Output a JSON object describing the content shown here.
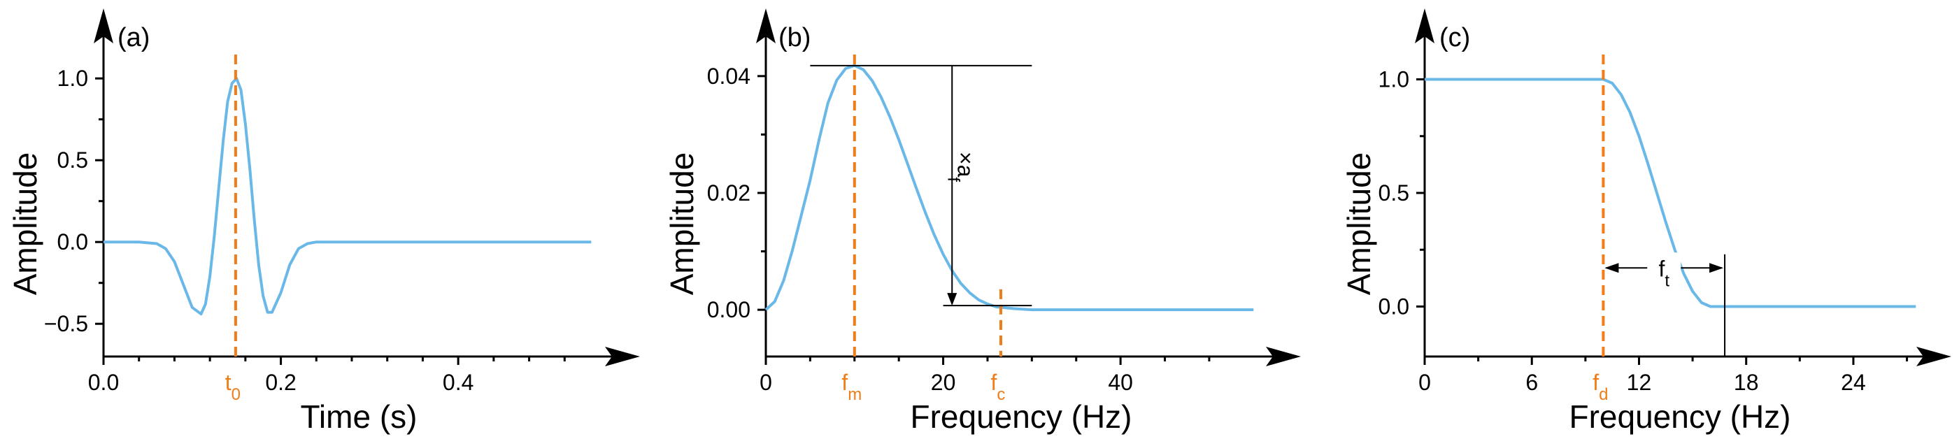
{
  "colors": {
    "curve": "#6ab8e8",
    "marker": "#ef7d1a",
    "axis": "#000000"
  },
  "chart_data": [
    {
      "type": "line",
      "panel_label": "(a)",
      "xlabel": "Time (s)",
      "ylabel": "Amplitude",
      "xlim": [
        0.0,
        0.56
      ],
      "ylim": [
        -0.7,
        1.3
      ],
      "xticks": [
        {
          "value": 0.0,
          "label": "0.0"
        },
        {
          "value": 0.2,
          "label": "0.2"
        },
        {
          "value": 0.4,
          "label": "0.4"
        }
      ],
      "xminor": [
        0.04,
        0.08,
        0.12,
        0.16,
        0.24,
        0.28,
        0.32,
        0.36,
        0.44,
        0.48,
        0.52
      ],
      "yticks": [
        {
          "value": -0.5,
          "label": "−0.5"
        },
        {
          "value": 0.0,
          "label": "0.0"
        },
        {
          "value": 0.5,
          "label": "0.5"
        },
        {
          "value": 1.0,
          "label": "1.0"
        }
      ],
      "yminor": [
        -0.25,
        0.25,
        0.75
      ],
      "series": [
        {
          "x": [
            0.0,
            0.04,
            0.06,
            0.07,
            0.08,
            0.09,
            0.1,
            0.11,
            0.115,
            0.12,
            0.125,
            0.13,
            0.135,
            0.14,
            0.145,
            0.15,
            0.155,
            0.16,
            0.165,
            0.17,
            0.175,
            0.18,
            0.185,
            0.19,
            0.2,
            0.21,
            0.22,
            0.23,
            0.24,
            0.26,
            0.3,
            0.4,
            0.5,
            0.55
          ],
          "y": [
            0.0,
            0.0,
            -0.01,
            -0.04,
            -0.12,
            -0.26,
            -0.4,
            -0.44,
            -0.38,
            -0.21,
            0.04,
            0.33,
            0.62,
            0.86,
            0.97,
            1.0,
            0.93,
            0.72,
            0.45,
            0.14,
            -0.14,
            -0.33,
            -0.43,
            -0.43,
            -0.31,
            -0.14,
            -0.04,
            -0.01,
            0.0,
            0.0,
            0.0,
            0.0,
            0.0,
            0.0
          ]
        }
      ],
      "markers": [
        {
          "x": 0.149,
          "label": "t",
          "sub": "0"
        }
      ]
    },
    {
      "type": "line",
      "panel_label": "(b)",
      "xlabel": "Frequency (Hz)",
      "ylabel": "Amplitude",
      "xlim": [
        0,
        56
      ],
      "ylim": [
        -0.008,
        0.048
      ],
      "xticks": [
        {
          "value": 0,
          "label": "0"
        },
        {
          "value": 20,
          "label": "20"
        },
        {
          "value": 40,
          "label": "40"
        }
      ],
      "xminor": [
        5,
        10,
        15,
        25,
        30,
        35,
        45,
        50
      ],
      "yticks": [
        {
          "value": 0.0,
          "label": "0.00"
        },
        {
          "value": 0.02,
          "label": "0.02"
        },
        {
          "value": 0.04,
          "label": "0.04"
        }
      ],
      "yminor": [
        0.01,
        0.03
      ],
      "series": [
        {
          "x": [
            0,
            1,
            2,
            3,
            4,
            5,
            6,
            7,
            8,
            9,
            10,
            11,
            12,
            13,
            14,
            15,
            16,
            17,
            18,
            19,
            20,
            21,
            22,
            23,
            24,
            25,
            26,
            28,
            30,
            35,
            40,
            45,
            50,
            55
          ],
          "y": [
            0.0,
            0.0014,
            0.005,
            0.0102,
            0.0162,
            0.0222,
            0.0291,
            0.0354,
            0.0393,
            0.0413,
            0.0418,
            0.0411,
            0.0392,
            0.0364,
            0.033,
            0.0291,
            0.0249,
            0.0207,
            0.0166,
            0.0128,
            0.0095,
            0.0067,
            0.0045,
            0.0029,
            0.0017,
            0.001,
            0.0005,
            0.0002,
            0.0,
            0.0,
            0.0,
            0.0,
            0.0,
            0.0
          ]
        }
      ],
      "markers": [
        {
          "x": 10,
          "label": "f",
          "sub": "m"
        },
        {
          "x": 26.5,
          "label": "f",
          "sub": "c"
        }
      ],
      "annotations": [
        {
          "label": "×a",
          "sub": "f"
        }
      ]
    },
    {
      "type": "line",
      "panel_label": "(c)",
      "xlabel": "Frequency (Hz)",
      "ylabel": "Amplitude",
      "xlim": [
        0,
        27.8
      ],
      "ylim": [
        -0.22,
        1.22
      ],
      "xticks": [
        {
          "value": 0,
          "label": "0"
        },
        {
          "value": 6,
          "label": "6"
        },
        {
          "value": 12,
          "label": "12"
        },
        {
          "value": 18,
          "label": "18"
        },
        {
          "value": 24,
          "label": "24"
        }
      ],
      "xminor": [
        3,
        9,
        15,
        21,
        27
      ],
      "yticks": [
        {
          "value": 0.0,
          "label": "0.0"
        },
        {
          "value": 0.5,
          "label": "0.5"
        },
        {
          "value": 1.0,
          "label": "1.0"
        }
      ],
      "yminor": [
        0.25,
        0.75
      ],
      "series": [
        {
          "x": [
            0,
            2,
            4,
            6,
            8,
            10,
            10.5,
            11,
            11.5,
            12,
            12.5,
            13,
            13.5,
            14,
            14.5,
            15,
            15.5,
            16,
            16.5,
            17,
            18,
            20,
            22,
            24,
            26,
            27.5
          ],
          "y": [
            1.0,
            1.0,
            1.0,
            1.0,
            1.0,
            1.0,
            0.983,
            0.933,
            0.854,
            0.75,
            0.629,
            0.5,
            0.371,
            0.25,
            0.146,
            0.067,
            0.017,
            0.0,
            0.0,
            0.0,
            0.0,
            0.0,
            0.0,
            0.0,
            0.0,
            0.0
          ]
        }
      ],
      "markers": [
        {
          "x": 10,
          "label": "f",
          "sub": "d"
        }
      ],
      "annotations": [
        {
          "label": "f",
          "sub": "t"
        }
      ]
    }
  ]
}
